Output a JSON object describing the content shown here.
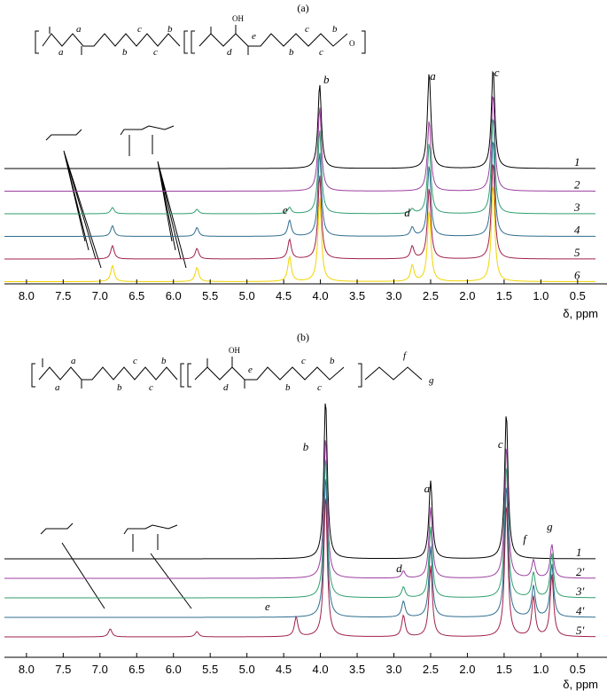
{
  "chart_data": [
    {
      "type": "line",
      "panel_label": "(a)",
      "xlabel": "δ, ppm",
      "xlim": [
        8.3,
        0.1
      ],
      "xticks": [
        "8.0",
        "7.5",
        "7.0",
        "6.5",
        "6.0",
        "5.5",
        "5.0",
        "4.5",
        "4.0",
        "3.5",
        "3.0",
        "2.5",
        "2.0",
        "1.5",
        "1.0",
        "0.5"
      ],
      "structure_labels": {
        "a1": "a",
        "a2": "a",
        "b1": "b",
        "b2": "b",
        "c1": "c",
        "c2": "c",
        "d": "d",
        "e": "e",
        "oh": "OH",
        "o": "O",
        "b3": "b",
        "c3": "c",
        "c4": "c",
        "b4": "b"
      },
      "peak_labels": [
        {
          "text": "b",
          "x": 3.92
        },
        {
          "text": "a",
          "x": 2.47
        },
        {
          "text": "c",
          "x": 1.6
        },
        {
          "text": "e",
          "x": 4.48
        },
        {
          "text": "d",
          "x": 2.82
        }
      ],
      "series": [
        {
          "name": "1",
          "color": "#000000",
          "peaks": [
            [
              4.01,
              95
            ],
            [
              2.52,
              108
            ],
            [
              1.65,
              113
            ]
          ]
        },
        {
          "name": "2",
          "color": "#9b3fa0",
          "peaks": [
            [
              4.01,
              95
            ],
            [
              2.52,
              80
            ],
            [
              1.65,
              110
            ]
          ]
        },
        {
          "name": "3",
          "color": "#2f9e6e",
          "peaks": [
            [
              6.83,
              7
            ],
            [
              5.68,
              5
            ],
            [
              4.42,
              7
            ],
            [
              4.01,
              95
            ],
            [
              2.75,
              5
            ],
            [
              2.52,
              80
            ],
            [
              1.65,
              110
            ]
          ]
        },
        {
          "name": "4",
          "color": "#2e6d8e",
          "peaks": [
            [
              6.83,
              12
            ],
            [
              5.68,
              10
            ],
            [
              4.42,
              18
            ],
            [
              4.01,
              95
            ],
            [
              2.75,
              10
            ],
            [
              2.52,
              80
            ],
            [
              1.65,
              110
            ]
          ]
        },
        {
          "name": "5",
          "color": "#a0204a",
          "peaks": [
            [
              6.83,
              15
            ],
            [
              5.68,
              12
            ],
            [
              4.42,
              22
            ],
            [
              4.01,
              95
            ],
            [
              2.75,
              14
            ],
            [
              2.52,
              80
            ],
            [
              1.65,
              110
            ]
          ]
        },
        {
          "name": "6",
          "color": "#f0d400",
          "peaks": [
            [
              6.83,
              18
            ],
            [
              5.68,
              16
            ],
            [
              4.42,
              28
            ],
            [
              4.01,
              95
            ],
            [
              2.75,
              18
            ],
            [
              2.52,
              80
            ],
            [
              1.65,
              110
            ]
          ]
        }
      ]
    },
    {
      "type": "line",
      "panel_label": "(b)",
      "xlabel": "δ, ppm",
      "xlim": [
        8.3,
        0.1
      ],
      "xticks": [
        "8.0",
        "7.5",
        "7.0",
        "6.5",
        "6.0",
        "5.5",
        "5.0",
        "4.5",
        "4.0",
        "3.5",
        "3.0",
        "2.5",
        "2.0",
        "1.5",
        "1.0",
        "0.5"
      ],
      "structure_labels": {
        "a1": "a",
        "a2": "a",
        "b1": "b",
        "b2": "b",
        "c1": "c",
        "c2": "c",
        "d": "d",
        "e": "e",
        "f": "f",
        "g": "g",
        "oh": "OH",
        "b3": "b",
        "c3": "c",
        "c4": "c",
        "b4": "b"
      },
      "peak_labels": [
        {
          "text": "b",
          "x": 4.2
        },
        {
          "text": "a",
          "x": 2.55
        },
        {
          "text": "c",
          "x": 1.55
        },
        {
          "text": "d",
          "x": 2.93
        },
        {
          "text": "e",
          "x": 4.72
        },
        {
          "text": "f",
          "x": 1.22
        },
        {
          "text": "g",
          "x": 0.88
        }
      ],
      "series": [
        {
          "name": "1",
          "color": "#000000",
          "peaks": [
            [
              3.93,
              180
            ],
            [
              2.5,
              88
            ],
            [
              1.47,
              165
            ]
          ]
        },
        {
          "name": "2'",
          "color": "#9b3fa0",
          "peaks": [
            [
              3.93,
              160
            ],
            [
              2.87,
              8
            ],
            [
              2.5,
              80
            ],
            [
              1.47,
              150
            ],
            [
              1.1,
              20
            ],
            [
              0.85,
              38
            ]
          ]
        },
        {
          "name": "3'",
          "color": "#2f9e6e",
          "peaks": [
            [
              3.93,
              160
            ],
            [
              2.87,
              12
            ],
            [
              2.5,
              80
            ],
            [
              1.47,
              150
            ],
            [
              1.1,
              28
            ],
            [
              0.85,
              50
            ]
          ]
        },
        {
          "name": "4'",
          "color": "#2e6d8e",
          "peaks": [
            [
              3.93,
              160
            ],
            [
              2.87,
              18
            ],
            [
              2.5,
              80
            ],
            [
              1.47,
              150
            ],
            [
              1.1,
              35
            ],
            [
              0.85,
              60
            ]
          ]
        },
        {
          "name": "5'",
          "color": "#a0204a",
          "peaks": [
            [
              6.86,
              9
            ],
            [
              5.68,
              6
            ],
            [
              4.33,
              22
            ],
            [
              3.93,
              160
            ],
            [
              2.87,
              24
            ],
            [
              2.5,
              80
            ],
            [
              1.47,
              150
            ],
            [
              1.1,
              45
            ],
            [
              0.85,
              70
            ]
          ]
        }
      ]
    }
  ]
}
